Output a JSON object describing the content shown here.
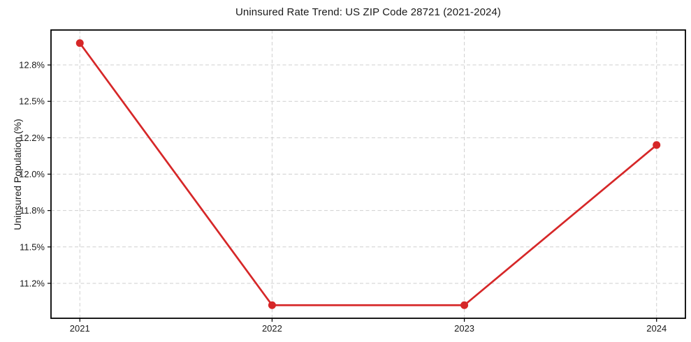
{
  "chart_data": {
    "type": "line",
    "title": "Uninsured Rate Trend: US ZIP Code 28721 (2021-2024)",
    "ylabel": "Uninsured Population (%)",
    "xlabel": "",
    "x": [
      2021,
      2022,
      2023,
      2024
    ],
    "values": [
      12.9,
      11.1,
      11.1,
      12.2
    ],
    "xlim": [
      2020.85,
      2024.15
    ],
    "ylim": [
      11.01,
      12.99
    ],
    "xticks": [
      {
        "value": 2021,
        "label": "2021"
      },
      {
        "value": 2022,
        "label": "2022"
      },
      {
        "value": 2023,
        "label": "2023"
      },
      {
        "value": 2024,
        "label": "2024"
      }
    ],
    "yticks": [
      {
        "value": 11.25,
        "label": "11.2%"
      },
      {
        "value": 11.5,
        "label": "11.5%"
      },
      {
        "value": 11.75,
        "label": "11.8%"
      },
      {
        "value": 12.0,
        "label": "12.0%"
      },
      {
        "value": 12.25,
        "label": "12.2%"
      },
      {
        "value": 12.5,
        "label": "12.5%"
      },
      {
        "value": 12.75,
        "label": "12.8%"
      }
    ],
    "grid": true,
    "legend_position": "none",
    "line_color": "#d62728",
    "marker_color": "#d62728",
    "marker_shape": "circle",
    "grid_color": "#cfcfcf",
    "background_color": "#ffffff",
    "text_color": "#1a1a1a"
  }
}
